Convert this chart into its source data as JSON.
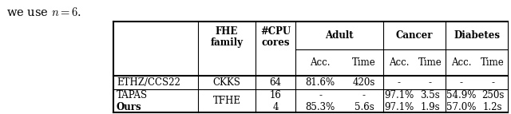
{
  "title": "we use $n = 6$.",
  "rows": [
    [
      "ETHZ/CCS22",
      "CKKS",
      "64",
      "81.6%",
      "420s",
      "-",
      "-",
      "-",
      "-"
    ],
    [
      "TAPAS",
      "TFHE",
      "16",
      "-",
      "-",
      "97.1%",
      "3.5s",
      "54.9%",
      "250s"
    ],
    [
      "Ours",
      "TFHE",
      "4",
      "85.3%",
      "5.6s",
      "97.1%",
      "1.9s",
      "57.0%",
      "1.2s"
    ]
  ],
  "background_color": "#ffffff",
  "fs": 8.5
}
